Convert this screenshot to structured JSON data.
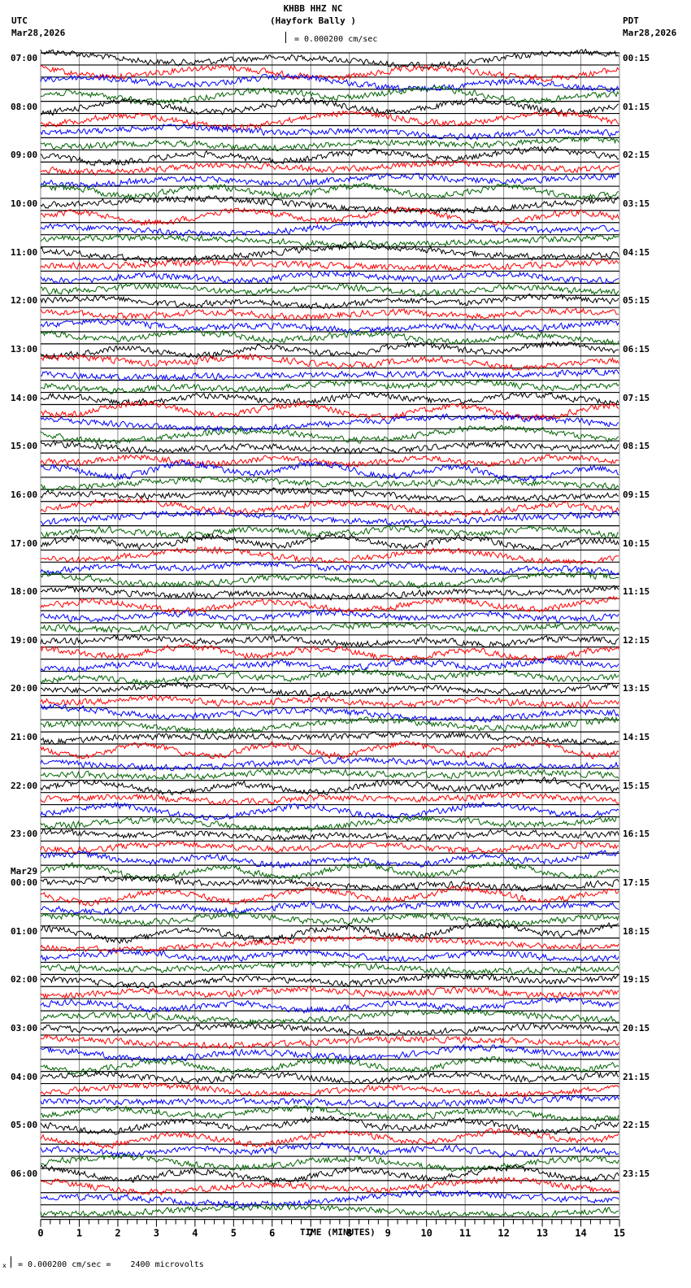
{
  "header": {
    "station": "KHBB HHZ NC",
    "location": "(Hayfork Bally )",
    "left_tz": "UTC",
    "left_date": "Mar28,2026",
    "right_tz": "PDT",
    "right_date": "Mar28,2026",
    "scale_text": "= 0.000200 cm/sec"
  },
  "footer": {
    "xlabel": "TIME (MINUTES)",
    "scale_note": "= 0.000200 cm/sec =    2400 microvolts",
    "scale_prefix": "x"
  },
  "chart_data": {
    "type": "line",
    "title": "KHBB HHZ NC (Hayfork Bally )",
    "xlabel": "TIME (MINUTES)",
    "ylabel": "",
    "xlim": [
      0,
      15
    ],
    "x_ticks": [
      "0",
      "1",
      "2",
      "3",
      "4",
      "5",
      "6",
      "7",
      "8",
      "9",
      "10",
      "11",
      "12",
      "13",
      "14",
      "15"
    ],
    "traces_per_hour": 4,
    "trace_colors": [
      "#000000",
      "#ff0000",
      "#0000ff",
      "#006400"
    ],
    "grid": true,
    "left_labels": [
      "07:00",
      "08:00",
      "09:00",
      "10:00",
      "11:00",
      "12:00",
      "13:00",
      "14:00",
      "15:00",
      "16:00",
      "17:00",
      "18:00",
      "19:00",
      "20:00",
      "21:00",
      "22:00",
      "23:00",
      "00:00",
      "01:00",
      "02:00",
      "03:00",
      "04:00",
      "05:00",
      "06:00"
    ],
    "date_change_label": {
      "index": 17,
      "text": "Mar29"
    },
    "right_labels": [
      "00:15",
      "01:15",
      "02:15",
      "03:15",
      "04:15",
      "05:15",
      "06:15",
      "07:15",
      "08:15",
      "09:15",
      "10:15",
      "11:15",
      "12:15",
      "13:15",
      "14:15",
      "15:15",
      "16:15",
      "17:15",
      "18:15",
      "19:15",
      "20:15",
      "21:15",
      "22:15",
      "23:15"
    ],
    "scale": "0.000200 cm/sec = 2400 microvolts"
  }
}
